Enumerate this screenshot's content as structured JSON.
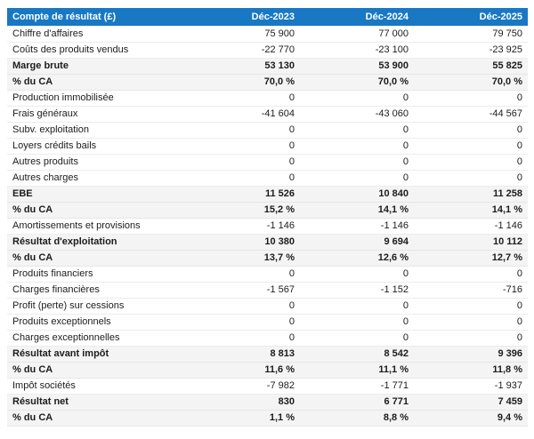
{
  "colors": {
    "header_bg": "#1878c4",
    "band_bg": "#f4f4f4",
    "header_text": "#ffffff"
  },
  "table": {
    "header": {
      "label": "Compte de résultat (£)",
      "columns": [
        "Déc-2023",
        "Déc-2024",
        "Déc-2025"
      ]
    },
    "rows": [
      {
        "label": "Chiffre d'affaires",
        "values": [
          "75 900",
          "77 000",
          "79 750"
        ],
        "emphasis": false
      },
      {
        "label": "Coûts des produits vendus",
        "values": [
          "-22 770",
          "-23 100",
          "-23 925"
        ],
        "emphasis": false
      },
      {
        "label": "Marge brute",
        "values": [
          "53 130",
          "53 900",
          "55 825"
        ],
        "emphasis": true
      },
      {
        "label": "% du CA",
        "values": [
          "70,0 %",
          "70,0 %",
          "70,0 %"
        ],
        "emphasis": true
      },
      {
        "label": "Production immobilisée",
        "values": [
          "0",
          "0",
          "0"
        ],
        "emphasis": false
      },
      {
        "label": "Frais généraux",
        "values": [
          "-41 604",
          "-43 060",
          "-44 567"
        ],
        "emphasis": false
      },
      {
        "label": "Subv. exploitation",
        "values": [
          "0",
          "0",
          "0"
        ],
        "emphasis": false
      },
      {
        "label": "Loyers crédits bails",
        "values": [
          "0",
          "0",
          "0"
        ],
        "emphasis": false
      },
      {
        "label": "Autres produits",
        "values": [
          "0",
          "0",
          "0"
        ],
        "emphasis": false
      },
      {
        "label": "Autres charges",
        "values": [
          "0",
          "0",
          "0"
        ],
        "emphasis": false
      },
      {
        "label": "EBE",
        "values": [
          "11 526",
          "10 840",
          "11 258"
        ],
        "emphasis": true
      },
      {
        "label": "% du CA",
        "values": [
          "15,2 %",
          "14,1 %",
          "14,1 %"
        ],
        "emphasis": true
      },
      {
        "label": "Amortissements et provisions",
        "values": [
          "-1 146",
          "-1 146",
          "-1 146"
        ],
        "emphasis": false
      },
      {
        "label": "Résultat d'exploitation",
        "values": [
          "10 380",
          "9 694",
          "10 112"
        ],
        "emphasis": true
      },
      {
        "label": "% du CA",
        "values": [
          "13,7 %",
          "12,6 %",
          "12,7 %"
        ],
        "emphasis": true
      },
      {
        "label": "Produits financiers",
        "values": [
          "0",
          "0",
          "0"
        ],
        "emphasis": false
      },
      {
        "label": "Charges financières",
        "values": [
          "-1 567",
          "-1 152",
          "-716"
        ],
        "emphasis": false
      },
      {
        "label": "Profit (perte) sur cessions",
        "values": [
          "0",
          "0",
          "0"
        ],
        "emphasis": false
      },
      {
        "label": "Produits exceptionnels",
        "values": [
          "0",
          "0",
          "0"
        ],
        "emphasis": false
      },
      {
        "label": "Charges exceptionnelles",
        "values": [
          "0",
          "0",
          "0"
        ],
        "emphasis": false
      },
      {
        "label": "Résultat avant impôt",
        "values": [
          "8 813",
          "8 542",
          "9 396"
        ],
        "emphasis": true
      },
      {
        "label": "% du CA",
        "values": [
          "11,6 %",
          "11,1 %",
          "11,8 %"
        ],
        "emphasis": true
      },
      {
        "label": "Impôt sociétés",
        "values": [
          "-7 982",
          "-1 771",
          "-1 937"
        ],
        "emphasis": false
      },
      {
        "label": "Résultat net",
        "values": [
          "830",
          "6 771",
          "7 459"
        ],
        "emphasis": true
      },
      {
        "label": "% du CA",
        "values": [
          "1,1 %",
          "8,8 %",
          "9,4 %"
        ],
        "emphasis": true
      }
    ]
  },
  "chart_data": {
    "type": "table",
    "title": "Compte de résultat (£)",
    "columns": [
      "Compte de résultat (£)",
      "Déc-2023",
      "Déc-2024",
      "Déc-2025"
    ],
    "rows": [
      {
        "label": "Chiffre d'affaires",
        "unit": "£",
        "values": [
          75900,
          77000,
          79750
        ]
      },
      {
        "label": "Coûts des produits vendus",
        "unit": "£",
        "values": [
          -22770,
          -23100,
          -23925
        ]
      },
      {
        "label": "Marge brute",
        "unit": "£",
        "values": [
          53130,
          53900,
          55825
        ]
      },
      {
        "label": "% du CA (marge brute)",
        "unit": "%",
        "values": [
          70.0,
          70.0,
          70.0
        ]
      },
      {
        "label": "Production immobilisée",
        "unit": "£",
        "values": [
          0,
          0,
          0
        ]
      },
      {
        "label": "Frais généraux",
        "unit": "£",
        "values": [
          -41604,
          -43060,
          -44567
        ]
      },
      {
        "label": "Subv. exploitation",
        "unit": "£",
        "values": [
          0,
          0,
          0
        ]
      },
      {
        "label": "Loyers crédits bails",
        "unit": "£",
        "values": [
          0,
          0,
          0
        ]
      },
      {
        "label": "Autres produits",
        "unit": "£",
        "values": [
          0,
          0,
          0
        ]
      },
      {
        "label": "Autres charges",
        "unit": "£",
        "values": [
          0,
          0,
          0
        ]
      },
      {
        "label": "EBE",
        "unit": "£",
        "values": [
          11526,
          10840,
          11258
        ]
      },
      {
        "label": "% du CA (EBE)",
        "unit": "%",
        "values": [
          15.2,
          14.1,
          14.1
        ]
      },
      {
        "label": "Amortissements et provisions",
        "unit": "£",
        "values": [
          -1146,
          -1146,
          -1146
        ]
      },
      {
        "label": "Résultat d'exploitation",
        "unit": "£",
        "values": [
          10380,
          9694,
          10112
        ]
      },
      {
        "label": "% du CA (résultat d'exploitation)",
        "unit": "%",
        "values": [
          13.7,
          12.6,
          12.7
        ]
      },
      {
        "label": "Produits financiers",
        "unit": "£",
        "values": [
          0,
          0,
          0
        ]
      },
      {
        "label": "Charges financières",
        "unit": "£",
        "values": [
          -1567,
          -1152,
          -716
        ]
      },
      {
        "label": "Profit (perte) sur cessions",
        "unit": "£",
        "values": [
          0,
          0,
          0
        ]
      },
      {
        "label": "Produits exceptionnels",
        "unit": "£",
        "values": [
          0,
          0,
          0
        ]
      },
      {
        "label": "Charges exceptionnelles",
        "unit": "£",
        "values": [
          0,
          0,
          0
        ]
      },
      {
        "label": "Résultat avant impôt",
        "unit": "£",
        "values": [
          8813,
          8542,
          9396
        ]
      },
      {
        "label": "% du CA (résultat avant impôt)",
        "unit": "%",
        "values": [
          11.6,
          11.1,
          11.8
        ]
      },
      {
        "label": "Impôt sociétés",
        "unit": "£",
        "values": [
          -7982,
          -1771,
          -1937
        ]
      },
      {
        "label": "Résultat net",
        "unit": "£",
        "values": [
          830,
          6771,
          7459
        ]
      },
      {
        "label": "% du CA (résultat net)",
        "unit": "%",
        "values": [
          1.1,
          8.8,
          9.4
        ]
      }
    ]
  }
}
